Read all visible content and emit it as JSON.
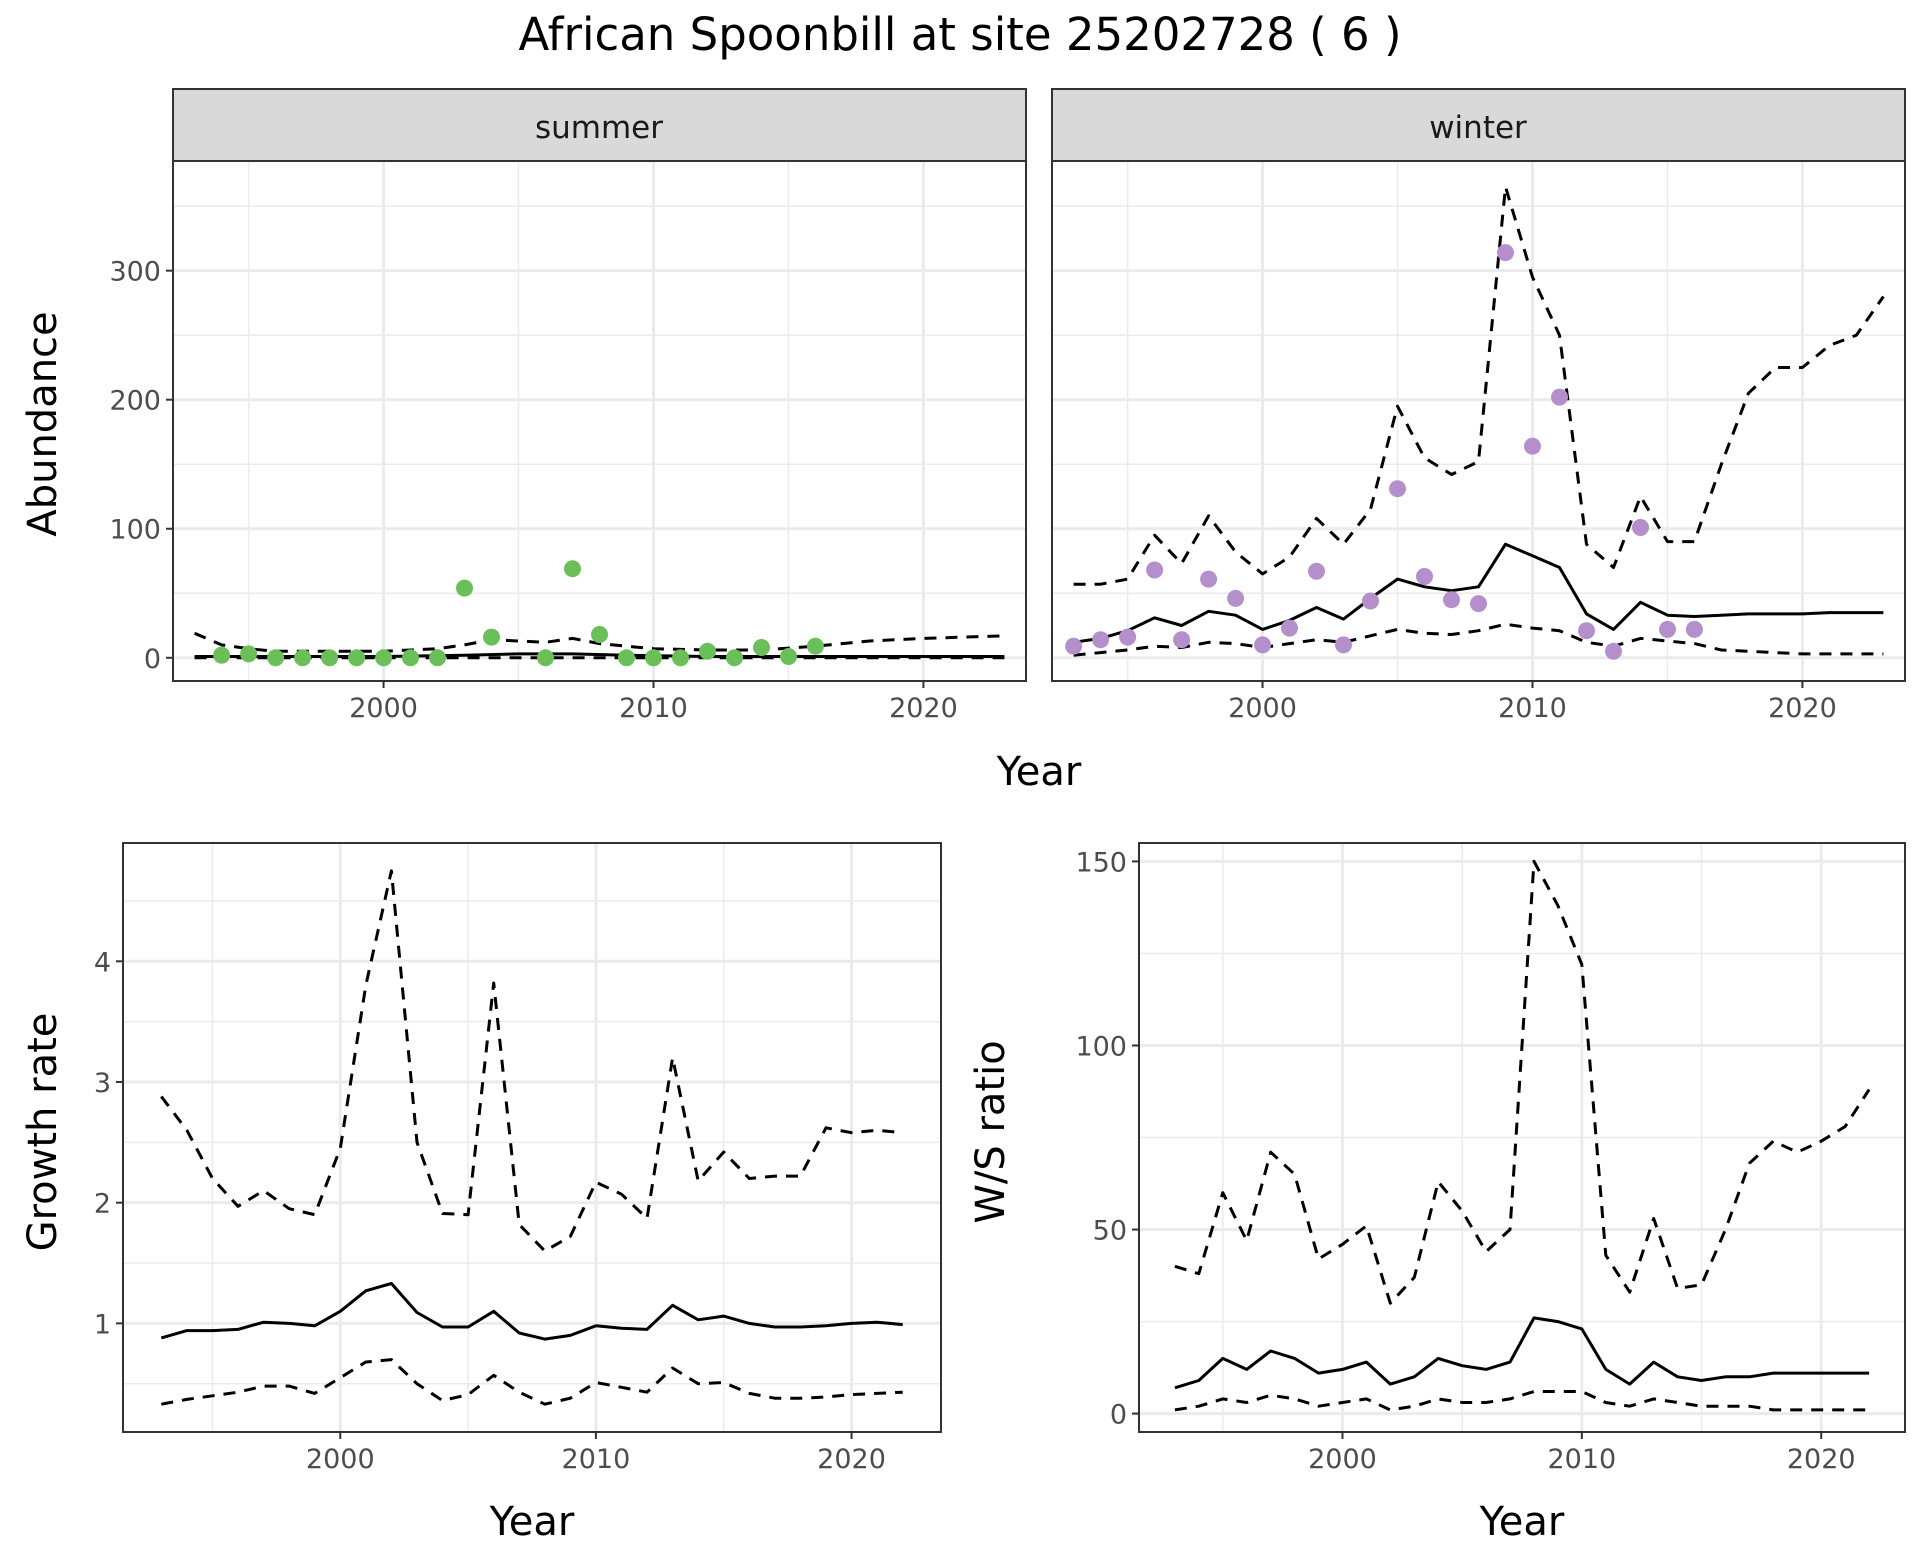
{
  "title": "African Spoonbill at site 25202728 ( 6 )",
  "colors": {
    "summer_points": "#6abf59",
    "winter_points": "#b48fcc",
    "lines": "#000000",
    "grid": "#ebebeb",
    "strip_fill": "#d9d9d9",
    "panel_border": "#333333"
  },
  "chart_data": [
    {
      "type": "line",
      "facet": "summer",
      "xlabel": "Year",
      "ylabel": "Abundance",
      "xlim": [
        1992.2,
        2023.8
      ],
      "ylim": [
        -18,
        385
      ],
      "x_ticks": [
        2000,
        2010,
        2020
      ],
      "y_ticks": [
        0,
        100,
        200,
        300
      ],
      "grid": true,
      "points": {
        "x": [
          1994,
          1995,
          1996,
          1997,
          1998,
          1999,
          2000,
          2001,
          2002,
          2003,
          2004,
          2006,
          2007,
          2008,
          2009,
          2010,
          2011,
          2012,
          2013,
          2014,
          2015,
          2016
        ],
        "y": [
          2,
          3,
          0,
          0,
          0,
          0,
          0,
          0,
          0,
          54,
          16,
          0,
          69,
          18,
          0,
          0,
          0,
          5,
          0,
          8,
          1,
          9
        ]
      },
      "series": [
        {
          "style": "solid",
          "x": [
            1993,
            1995,
            2000,
            2003,
            2005,
            2007,
            2009,
            2012,
            2015,
            2018,
            2020,
            2023
          ],
          "y": [
            1,
            1,
            1,
            2,
            3,
            3,
            2,
            1,
            1,
            1,
            1,
            1
          ]
        },
        {
          "style": "dashed",
          "x": [
            1993,
            1994,
            1995,
            1996,
            1998,
            2000,
            2002,
            2003,
            2004,
            2005,
            2006,
            2007,
            2008,
            2009,
            2010,
            2012,
            2014,
            2016,
            2018,
            2020,
            2023
          ],
          "y": [
            19,
            10,
            7,
            5,
            5,
            5,
            7,
            10,
            14,
            13,
            12,
            15,
            11,
            9,
            7,
            6,
            6,
            9,
            13,
            15,
            17
          ]
        },
        {
          "style": "dashed",
          "x": [
            1993,
            1995,
            2000,
            2005,
            2010,
            2015,
            2020,
            2023
          ],
          "y": [
            0,
            0,
            0,
            0,
            0,
            0,
            0,
            0
          ]
        }
      ]
    },
    {
      "type": "line",
      "facet": "winter",
      "xlabel": "Year",
      "ylabel": "Abundance",
      "xlim": [
        1992.2,
        2023.8
      ],
      "ylim": [
        -18,
        385
      ],
      "x_ticks": [
        2000,
        2010,
        2020
      ],
      "y_ticks": [
        0,
        100,
        200,
        300
      ],
      "grid": true,
      "points": {
        "x": [
          1993,
          1994,
          1995,
          1996,
          1997,
          1998,
          1999,
          2000,
          2001,
          2002,
          2003,
          2004,
          2005,
          2006,
          2007,
          2008,
          2009,
          2010,
          2011,
          2012,
          2013,
          2014,
          2015,
          2016
        ],
        "y": [
          9,
          14,
          16,
          68,
          14,
          61,
          46,
          10,
          23,
          67,
          10,
          44,
          131,
          63,
          45,
          42,
          314,
          164,
          202,
          21,
          5,
          101,
          22,
          22
        ]
      },
      "series": [
        {
          "style": "solid",
          "x": [
            1993,
            1994,
            1995,
            1996,
            1997,
            1998,
            1999,
            2000,
            2001,
            2002,
            2003,
            2004,
            2005,
            2006,
            2007,
            2008,
            2009,
            2010,
            2011,
            2012,
            2013,
            2014,
            2015,
            2016,
            2017,
            2018,
            2019,
            2020,
            2021,
            2022,
            2023
          ],
          "y": [
            12,
            15,
            21,
            31,
            25,
            36,
            33,
            22,
            29,
            39,
            30,
            46,
            61,
            55,
            52,
            55,
            88,
            79,
            70,
            34,
            22,
            43,
            33,
            32,
            33,
            34,
            34,
            34,
            35,
            35,
            35
          ]
        },
        {
          "style": "dashed",
          "x": [
            1993,
            1994,
            1995,
            1996,
            1997,
            1998,
            1999,
            2000,
            2001,
            2002,
            2003,
            2004,
            2005,
            2006,
            2007,
            2008,
            2009,
            2010,
            2011,
            2012,
            2013,
            2014,
            2015,
            2016,
            2017,
            2018,
            2019,
            2020,
            2021,
            2022,
            2023
          ],
          "y": [
            57,
            57,
            61,
            95,
            73,
            110,
            82,
            65,
            78,
            108,
            88,
            115,
            195,
            155,
            142,
            152,
            365,
            295,
            250,
            88,
            70,
            125,
            90,
            90,
            150,
            205,
            225,
            225,
            242,
            250,
            280
          ]
        },
        {
          "style": "dashed",
          "x": [
            1993,
            1994,
            1995,
            1996,
            1997,
            1998,
            1999,
            2000,
            2001,
            2002,
            2003,
            2004,
            2005,
            2006,
            2007,
            2008,
            2009,
            2010,
            2011,
            2012,
            2013,
            2014,
            2015,
            2016,
            2017,
            2018,
            2019,
            2020,
            2021,
            2022,
            2023
          ],
          "y": [
            2,
            4,
            6,
            9,
            8,
            12,
            11,
            8,
            11,
            14,
            12,
            17,
            22,
            19,
            18,
            21,
            26,
            23,
            21,
            12,
            9,
            15,
            13,
            11,
            6,
            5,
            4,
            3,
            3,
            3,
            3
          ]
        }
      ]
    },
    {
      "type": "line",
      "xlabel": "Year",
      "ylabel": "Growth rate",
      "xlim": [
        1991.5,
        2023.5
      ],
      "ylim": [
        0.1,
        4.98
      ],
      "x_ticks": [
        2000,
        2010,
        2020
      ],
      "y_ticks": [
        1,
        2,
        3,
        4
      ],
      "grid": true,
      "series": [
        {
          "style": "solid",
          "x": [
            1993,
            1994,
            1995,
            1996,
            1997,
            1998,
            1999,
            2000,
            2001,
            2002,
            2003,
            2004,
            2005,
            2006,
            2007,
            2008,
            2009,
            2010,
            2011,
            2012,
            2013,
            2014,
            2015,
            2016,
            2017,
            2018,
            2019,
            2020,
            2021,
            2022
          ],
          "y": [
            0.88,
            0.94,
            0.94,
            0.95,
            1.01,
            1.0,
            0.98,
            1.1,
            1.27,
            1.33,
            1.09,
            0.97,
            0.97,
            1.1,
            0.92,
            0.87,
            0.9,
            0.98,
            0.96,
            0.95,
            1.15,
            1.03,
            1.06,
            1.0,
            0.97,
            0.97,
            0.98,
            1.0,
            1.01,
            0.99
          ]
        },
        {
          "style": "dashed",
          "x": [
            1993,
            1994,
            1995,
            1996,
            1997,
            1998,
            1999,
            2000,
            2001,
            2002,
            2003,
            2004,
            2005,
            2006,
            2007,
            2008,
            2009,
            2010,
            2011,
            2012,
            2013,
            2014,
            2015,
            2016,
            2017,
            2018,
            2019,
            2020,
            2021,
            2022
          ],
          "y": [
            2.88,
            2.6,
            2.2,
            1.97,
            2.1,
            1.95,
            1.9,
            2.45,
            3.8,
            4.75,
            2.5,
            1.91,
            1.9,
            3.82,
            1.82,
            1.6,
            1.72,
            2.17,
            2.07,
            1.87,
            3.2,
            2.18,
            2.42,
            2.2,
            2.22,
            2.22,
            2.62,
            2.58,
            2.6,
            2.58
          ]
        },
        {
          "style": "dashed",
          "x": [
            1993,
            1994,
            1995,
            1996,
            1997,
            1998,
            1999,
            2000,
            2001,
            2002,
            2003,
            2004,
            2005,
            2006,
            2007,
            2008,
            2009,
            2010,
            2011,
            2012,
            2013,
            2014,
            2015,
            2016,
            2017,
            2018,
            2019,
            2020,
            2021,
            2022
          ],
          "y": [
            0.33,
            0.37,
            0.4,
            0.43,
            0.48,
            0.48,
            0.42,
            0.55,
            0.68,
            0.7,
            0.5,
            0.36,
            0.41,
            0.57,
            0.43,
            0.33,
            0.38,
            0.51,
            0.47,
            0.43,
            0.63,
            0.5,
            0.51,
            0.42,
            0.38,
            0.38,
            0.39,
            0.41,
            0.42,
            0.43
          ]
        }
      ]
    },
    {
      "type": "line",
      "xlabel": "Year",
      "ylabel": "W/S ratio",
      "xlim": [
        1991.5,
        2023.5
      ],
      "ylim": [
        -5,
        155
      ],
      "x_ticks": [
        2000,
        2010,
        2020
      ],
      "y_ticks": [
        0,
        50,
        100,
        150
      ],
      "grid": true,
      "series": [
        {
          "style": "solid",
          "x": [
            1993,
            1994,
            1995,
            1996,
            1997,
            1998,
            1999,
            2000,
            2001,
            2002,
            2003,
            2004,
            2005,
            2006,
            2007,
            2008,
            2009,
            2010,
            2011,
            2012,
            2013,
            2014,
            2015,
            2016,
            2017,
            2018,
            2019,
            2020,
            2021,
            2022
          ],
          "y": [
            7,
            9,
            15,
            12,
            17,
            15,
            11,
            12,
            14,
            8,
            10,
            15,
            13,
            12,
            14,
            26,
            25,
            23,
            12,
            8,
            14,
            10,
            9,
            10,
            10,
            11,
            11,
            11,
            11,
            11
          ]
        },
        {
          "style": "dashed",
          "x": [
            1993,
            1994,
            1995,
            1996,
            1997,
            1998,
            1999,
            2000,
            2001,
            2002,
            2003,
            2004,
            2005,
            2006,
            2007,
            2008,
            2009,
            2010,
            2011,
            2012,
            2013,
            2014,
            2015,
            2016,
            2017,
            2018,
            2019,
            2020,
            2021,
            2022
          ],
          "y": [
            40,
            38,
            60,
            47,
            71,
            65,
            42,
            46,
            51,
            30,
            37,
            63,
            55,
            44,
            50,
            150,
            138,
            122,
            43,
            33,
            53,
            34,
            35,
            50,
            68,
            74,
            71,
            74,
            78,
            88
          ]
        },
        {
          "style": "dashed",
          "x": [
            1993,
            1994,
            1995,
            1996,
            1997,
            1998,
            1999,
            2000,
            2001,
            2002,
            2003,
            2004,
            2005,
            2006,
            2007,
            2008,
            2009,
            2010,
            2011,
            2012,
            2013,
            2014,
            2015,
            2016,
            2017,
            2018,
            2019,
            2020,
            2021,
            2022
          ],
          "y": [
            1,
            2,
            4,
            3,
            5,
            4,
            2,
            3,
            4,
            1,
            2,
            4,
            3,
            3,
            4,
            6,
            6,
            6,
            3,
            2,
            4,
            3,
            2,
            2,
            2,
            1,
            1,
            1,
            1,
            1
          ]
        }
      ]
    }
  ]
}
